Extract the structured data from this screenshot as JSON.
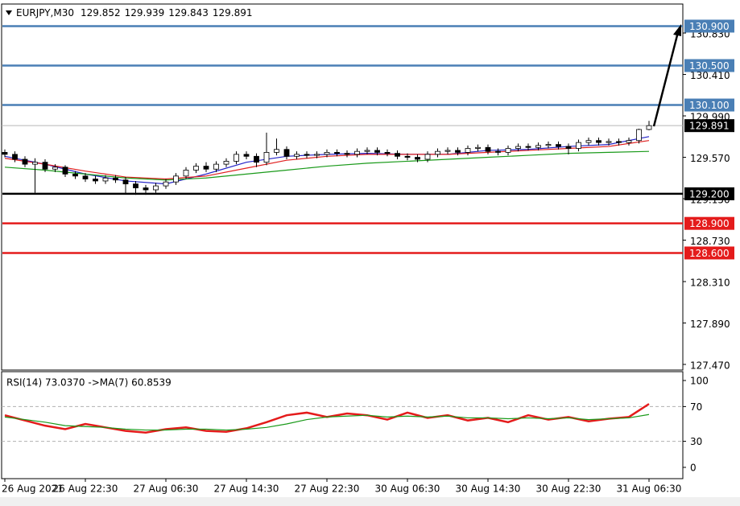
{
  "chart_data": {
    "type": "candlestick",
    "symbol": "EURJPY,M30",
    "categories": [
      "26 Aug 2021",
      null,
      null,
      null,
      null,
      null,
      null,
      null,
      "26 Aug 22:30",
      null,
      null,
      null,
      null,
      null,
      null,
      null,
      "27 Aug 06:30",
      null,
      null,
      null,
      null,
      null,
      null,
      null,
      "27 Aug 14:30",
      null,
      null,
      null,
      null,
      null,
      null,
      null,
      "27 Aug 22:30",
      null,
      null,
      null,
      null,
      null,
      null,
      null,
      "30 Aug 06:30",
      null,
      null,
      null,
      null,
      null,
      null,
      null,
      "30 Aug 14:30",
      null,
      null,
      null,
      null,
      null,
      null,
      null,
      "30 Aug 22:30",
      null,
      null,
      null,
      null,
      null,
      null,
      null,
      "31 Aug 06:30"
    ],
    "candles": [
      [
        129.62,
        129.65,
        129.57,
        129.6
      ],
      [
        129.6,
        129.63,
        129.52,
        129.55
      ],
      [
        129.55,
        129.58,
        129.47,
        129.5
      ],
      [
        129.5,
        129.56,
        129.21,
        129.52
      ],
      [
        129.52,
        129.55,
        129.42,
        129.45
      ],
      [
        129.45,
        129.5,
        129.42,
        129.47
      ],
      [
        129.47,
        129.49,
        129.37,
        129.4
      ],
      [
        129.4,
        129.43,
        129.35,
        129.38
      ],
      [
        129.38,
        129.41,
        129.32,
        129.35
      ],
      [
        129.35,
        129.38,
        129.3,
        129.33
      ],
      [
        129.33,
        129.39,
        129.3,
        129.36
      ],
      [
        129.36,
        129.39,
        129.31,
        129.34
      ],
      [
        129.34,
        129.37,
        129.2,
        129.3
      ],
      [
        129.3,
        129.33,
        129.19,
        129.26
      ],
      [
        129.26,
        129.29,
        129.19,
        129.24
      ],
      [
        129.24,
        129.31,
        129.21,
        129.28
      ],
      [
        129.28,
        129.35,
        129.25,
        129.32
      ],
      [
        129.32,
        129.41,
        129.29,
        129.38
      ],
      [
        129.38,
        129.47,
        129.35,
        129.44
      ],
      [
        129.44,
        129.51,
        129.41,
        129.48
      ],
      [
        129.48,
        129.52,
        129.42,
        129.45
      ],
      [
        129.45,
        129.53,
        129.42,
        129.5
      ],
      [
        129.5,
        129.56,
        129.47,
        129.53
      ],
      [
        129.53,
        129.63,
        129.5,
        129.6
      ],
      [
        129.6,
        129.63,
        129.55,
        129.58
      ],
      [
        129.58,
        129.61,
        129.47,
        129.52
      ],
      [
        129.52,
        129.82,
        129.49,
        129.62
      ],
      [
        129.62,
        129.76,
        129.59,
        129.65
      ],
      [
        129.65,
        129.68,
        129.55,
        129.58
      ],
      [
        129.58,
        129.63,
        129.55,
        129.6
      ],
      [
        129.6,
        129.63,
        129.56,
        129.59
      ],
      [
        129.59,
        129.63,
        129.56,
        129.6
      ],
      [
        129.6,
        129.65,
        129.57,
        129.62
      ],
      [
        129.62,
        129.65,
        129.58,
        129.61
      ],
      [
        129.61,
        129.64,
        129.57,
        129.6
      ],
      [
        129.6,
        129.66,
        129.57,
        129.63
      ],
      [
        129.63,
        129.67,
        129.6,
        129.64
      ],
      [
        129.64,
        129.67,
        129.59,
        129.62
      ],
      [
        129.62,
        129.65,
        129.58,
        129.61
      ],
      [
        129.61,
        129.64,
        129.55,
        129.58
      ],
      [
        129.58,
        129.61,
        129.54,
        129.57
      ],
      [
        129.57,
        129.6,
        129.52,
        129.55
      ],
      [
        129.55,
        129.63,
        129.52,
        129.6
      ],
      [
        129.6,
        129.66,
        129.57,
        129.63
      ],
      [
        129.63,
        129.67,
        129.6,
        129.64
      ],
      [
        129.64,
        129.67,
        129.59,
        129.62
      ],
      [
        129.62,
        129.69,
        129.59,
        129.66
      ],
      [
        129.66,
        129.7,
        129.63,
        129.67
      ],
      [
        129.67,
        129.7,
        129.6,
        129.63
      ],
      [
        129.63,
        129.66,
        129.59,
        129.62
      ],
      [
        129.62,
        129.69,
        129.59,
        129.66
      ],
      [
        129.66,
        129.71,
        129.63,
        129.68
      ],
      [
        129.68,
        129.71,
        129.64,
        129.67
      ],
      [
        129.67,
        129.72,
        129.64,
        129.69
      ],
      [
        129.69,
        129.73,
        129.66,
        129.7
      ],
      [
        129.7,
        129.73,
        129.65,
        129.68
      ],
      [
        129.68,
        129.71,
        129.6,
        129.66
      ],
      [
        129.66,
        129.75,
        129.63,
        129.72
      ],
      [
        129.72,
        129.77,
        129.69,
        129.74
      ],
      [
        129.74,
        129.77,
        129.69,
        129.72
      ],
      [
        129.72,
        129.76,
        129.69,
        129.73
      ],
      [
        129.73,
        129.76,
        129.69,
        129.72
      ],
      [
        129.72,
        129.77,
        129.69,
        129.74
      ],
      [
        129.74,
        129.86,
        129.71,
        129.852
      ],
      [
        129.852,
        129.939,
        129.843,
        129.891
      ]
    ],
    "ma": {
      "x": [
        0,
        4,
        8,
        12,
        16,
        20,
        24,
        28,
        32,
        36,
        40,
        44,
        48,
        52,
        56,
        60,
        64
      ],
      "series": [
        {
          "color": "#2424c8",
          "values": [
            129.58,
            129.5,
            129.4,
            129.33,
            129.3,
            129.4,
            129.52,
            129.58,
            129.6,
            129.61,
            129.6,
            129.6,
            129.64,
            129.65,
            129.68,
            129.7,
            129.78
          ]
        },
        {
          "color": "#e02020",
          "values": [
            129.56,
            129.5,
            129.43,
            129.37,
            129.35,
            129.38,
            129.46,
            129.54,
            129.58,
            129.6,
            129.6,
            129.6,
            129.62,
            129.64,
            129.66,
            129.68,
            129.74
          ]
        },
        {
          "color": "#1a9a1a",
          "values": [
            129.47,
            129.44,
            129.4,
            129.36,
            129.34,
            129.36,
            129.4,
            129.44,
            129.48,
            129.51,
            129.53,
            129.55,
            129.57,
            129.59,
            129.61,
            129.62,
            129.63
          ]
        }
      ]
    },
    "ylim": [
      127.413,
      131.124
    ],
    "yticks": [
      {
        "value": 130.83,
        "label": "130.830"
      },
      {
        "value": 130.41,
        "label": "130.410"
      },
      {
        "value": 129.99,
        "label": "129.990"
      },
      {
        "value": 129.57,
        "label": "129.570"
      },
      {
        "value": 129.15,
        "label": "129.150"
      },
      {
        "value": 128.73,
        "label": "128.730"
      },
      {
        "value": 128.31,
        "label": "128.310"
      },
      {
        "value": 127.89,
        "label": "127.890"
      },
      {
        "value": 127.47,
        "label": "127.470"
      }
    ],
    "levels": [
      {
        "value": 130.9,
        "label": "130.900",
        "color": "#4a7fb5"
      },
      {
        "value": 130.5,
        "label": "130.500",
        "color": "#4a7fb5"
      },
      {
        "value": 130.1,
        "label": "130.100",
        "color": "#4a7fb5"
      },
      {
        "value": 129.2,
        "label": "129.200",
        "color": "#000000"
      },
      {
        "value": 128.9,
        "label": "128.900",
        "color": "#e41b1b"
      },
      {
        "value": 128.6,
        "label": "128.600",
        "color": "#e41b1b"
      }
    ],
    "current_price": 129.891,
    "rsi": {
      "label": "RSI(14) 73.0370  ->MA(7) 60.8539",
      "x": [
        0,
        2,
        4,
        6,
        8,
        10,
        12,
        14,
        16,
        18,
        20,
        22,
        24,
        26,
        28,
        30,
        32,
        34,
        36,
        38,
        40,
        42,
        44,
        46,
        48,
        50,
        52,
        54,
        56,
        58,
        60,
        62,
        64
      ],
      "series": [
        {
          "color": "#e41b1b",
          "values": [
            60,
            54,
            48,
            44,
            50,
            46,
            42,
            40,
            44,
            46,
            42,
            41,
            45,
            52,
            60,
            63,
            58,
            62,
            60,
            55,
            63,
            57,
            60,
            54,
            57,
            52,
            60,
            55,
            58,
            53,
            56,
            58,
            73.037
          ]
        },
        {
          "color": "#1a9a1a",
          "values": [
            58,
            55,
            52,
            48,
            47,
            46,
            44,
            43,
            43,
            44,
            44,
            43,
            44,
            46,
            50,
            55,
            58,
            59,
            60,
            58,
            59,
            58,
            59,
            57,
            57,
            56,
            57,
            56,
            57,
            55,
            56,
            57,
            60.8539
          ]
        }
      ],
      "ylim": [
        -13,
        110.2
      ],
      "yticks": [
        0,
        30,
        70,
        100
      ],
      "dashed": [
        30,
        70
      ]
    }
  }
}
